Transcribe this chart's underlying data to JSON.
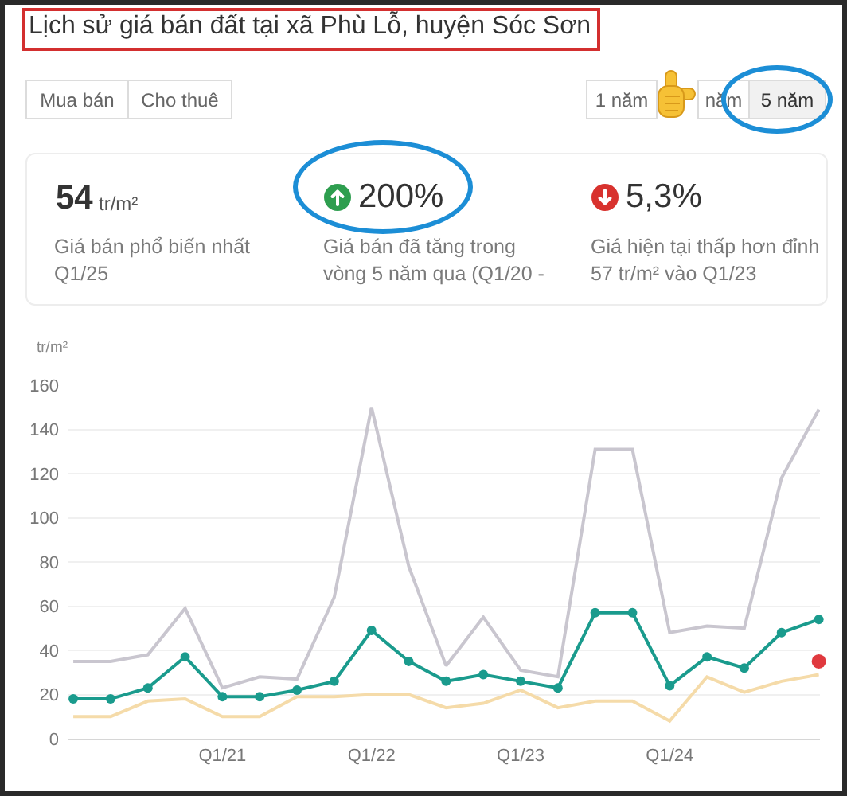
{
  "chart_data": {
    "type": "line",
    "title": "Lịch sử giá bán đất tại xã Phù Lỗ, huyện Sóc Sơn",
    "ylabel": "tr/m²",
    "categories": [
      null,
      null,
      null,
      null,
      "Q1/21",
      null,
      null,
      null,
      "Q1/22",
      null,
      null,
      null,
      "Q1/23",
      null,
      null,
      null,
      "Q1/24",
      null,
      null,
      null,
      null
    ],
    "series": [
      {
        "color": "#c9c6cf",
        "marker": "none",
        "values": [
          35,
          35,
          38,
          59,
          23,
          28,
          27,
          64,
          150,
          78,
          33,
          55,
          31,
          28,
          131,
          131,
          48,
          51,
          50,
          118,
          149
        ]
      },
      {
        "color": "#f5dba9",
        "marker": "none",
        "values": [
          10,
          10,
          17,
          18,
          10,
          10,
          19,
          19,
          20,
          20,
          14,
          16,
          22,
          14,
          17,
          17,
          8,
          28,
          21,
          26,
          29
        ]
      },
      {
        "color": "#1a9b8d",
        "marker": "circle",
        "values": [
          18,
          18,
          23,
          37,
          19,
          19,
          22,
          26,
          49,
          35,
          26,
          29,
          26,
          23,
          57,
          57,
          24,
          37,
          32,
          48,
          54
        ]
      },
      {
        "type": "scatter",
        "color": "#e0393e",
        "marker": "circle",
        "values": [
          null,
          null,
          null,
          null,
          null,
          null,
          null,
          null,
          null,
          null,
          null,
          null,
          null,
          null,
          null,
          null,
          null,
          null,
          null,
          null,
          35
        ]
      }
    ],
    "ylim": [
      0,
      160
    ],
    "yticks": [
      0,
      20,
      40,
      60,
      80,
      100,
      120,
      140,
      160
    ],
    "grid": "y",
    "annotations": [
      "Mua bán",
      "Cho thuê",
      "1 năm",
      "năm",
      "5 năm",
      "54",
      "tr/m²",
      "Giá bán phổ biến nhất\nQ1/25",
      "200%",
      "Giá bán đã tăng trong\nvòng 5 năm qua (Q1/20 -",
      "5,3%",
      "Giá hiện tại thấp hơn đỉnh\n57 tr/m² vào Q1/23"
    ]
  }
}
